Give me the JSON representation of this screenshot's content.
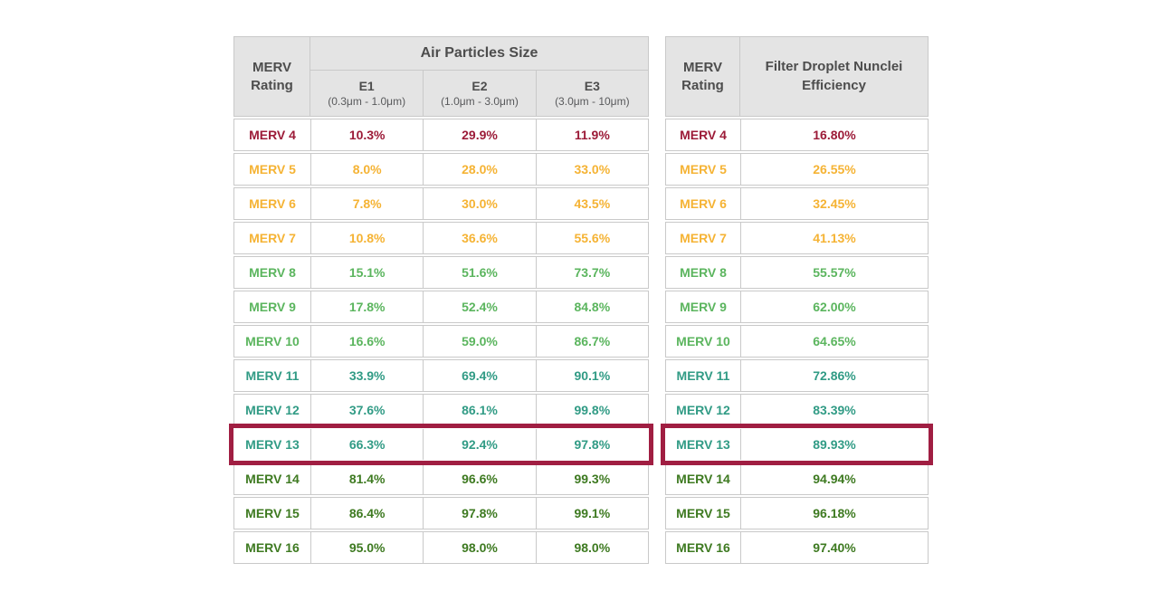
{
  "colors": {
    "header_bg": "#e4e4e4",
    "header_text": "#4d4d4d",
    "table_border": "#c9c9c9",
    "highlight_border": "#a01e42",
    "merv_4": "#9c1b38",
    "merv_5_7": "#f5b334",
    "merv_8_10": "#5bb55e",
    "merv_11_13": "#319b85",
    "merv_14_16": "#3e7a21"
  },
  "left_table": {
    "header": {
      "merv_rating": "MERV Rating",
      "group": "Air Particles Size",
      "columns": [
        {
          "label": "E1",
          "range": "(0.3μm - 1.0μm)"
        },
        {
          "label": "E2",
          "range": "(1.0μm - 3.0μm)"
        },
        {
          "label": "E3",
          "range": "(3.0μm - 10μm)"
        }
      ]
    },
    "rows": [
      {
        "label": "MERV 4",
        "e1": "10.3%",
        "e2": "29.9%",
        "e3": "11.9%",
        "color": "#9c1b38",
        "highlight": false
      },
      {
        "label": "MERV 5",
        "e1": "8.0%",
        "e2": "28.0%",
        "e3": "33.0%",
        "color": "#f5b334",
        "highlight": false
      },
      {
        "label": "MERV 6",
        "e1": "7.8%",
        "e2": "30.0%",
        "e3": "43.5%",
        "color": "#f5b334",
        "highlight": false
      },
      {
        "label": "MERV 7",
        "e1": "10.8%",
        "e2": "36.6%",
        "e3": "55.6%",
        "color": "#f5b334",
        "highlight": false
      },
      {
        "label": "MERV 8",
        "e1": "15.1%",
        "e2": "51.6%",
        "e3": "73.7%",
        "color": "#5bb55e",
        "highlight": false
      },
      {
        "label": "MERV 9",
        "e1": "17.8%",
        "e2": "52.4%",
        "e3": "84.8%",
        "color": "#5bb55e",
        "highlight": false
      },
      {
        "label": "MERV 10",
        "e1": "16.6%",
        "e2": "59.0%",
        "e3": "86.7%",
        "color": "#5bb55e",
        "highlight": false
      },
      {
        "label": "MERV 11",
        "e1": "33.9%",
        "e2": "69.4%",
        "e3": "90.1%",
        "color": "#319b85",
        "highlight": false
      },
      {
        "label": "MERV 12",
        "e1": "37.6%",
        "e2": "86.1%",
        "e3": "99.8%",
        "color": "#319b85",
        "highlight": false
      },
      {
        "label": "MERV 13",
        "e1": "66.3%",
        "e2": "92.4%",
        "e3": "97.8%",
        "color": "#319b85",
        "highlight": true
      },
      {
        "label": "MERV 14",
        "e1": "81.4%",
        "e2": "96.6%",
        "e3": "99.3%",
        "color": "#3e7a21",
        "highlight": false
      },
      {
        "label": "MERV 15",
        "e1": "86.4%",
        "e2": "97.8%",
        "e3": "99.1%",
        "color": "#3e7a21",
        "highlight": false
      },
      {
        "label": "MERV 16",
        "e1": "95.0%",
        "e2": "98.0%",
        "e3": "98.0%",
        "color": "#3e7a21",
        "highlight": false
      }
    ]
  },
  "right_table": {
    "header": {
      "merv_rating": "MERV Rating",
      "title": "Filter Droplet Nunclei Efficiency"
    },
    "rows": [
      {
        "label": "MERV 4",
        "value": "16.80%",
        "color": "#9c1b38",
        "highlight": false
      },
      {
        "label": "MERV 5",
        "value": "26.55%",
        "color": "#f5b334",
        "highlight": false
      },
      {
        "label": "MERV 6",
        "value": "32.45%",
        "color": "#f5b334",
        "highlight": false
      },
      {
        "label": "MERV 7",
        "value": "41.13%",
        "color": "#f5b334",
        "highlight": false
      },
      {
        "label": "MERV 8",
        "value": "55.57%",
        "color": "#5bb55e",
        "highlight": false
      },
      {
        "label": "MERV 9",
        "value": "62.00%",
        "color": "#5bb55e",
        "highlight": false
      },
      {
        "label": "MERV 10",
        "value": "64.65%",
        "color": "#5bb55e",
        "highlight": false
      },
      {
        "label": "MERV 11",
        "value": "72.86%",
        "color": "#319b85",
        "highlight": false
      },
      {
        "label": "MERV 12",
        "value": "83.39%",
        "color": "#319b85",
        "highlight": false
      },
      {
        "label": "MERV 13",
        "value": "89.93%",
        "color": "#319b85",
        "highlight": true
      },
      {
        "label": "MERV 14",
        "value": "94.94%",
        "color": "#3e7a21",
        "highlight": false
      },
      {
        "label": "MERV 15",
        "value": "96.18%",
        "color": "#3e7a21",
        "highlight": false
      },
      {
        "label": "MERV 16",
        "value": "97.40%",
        "color": "#3e7a21",
        "highlight": false
      }
    ]
  },
  "chart_data": [
    {
      "type": "table",
      "title": "Air Particles Size",
      "columns": [
        "MERV Rating",
        "E1 (0.3μm - 1.0μm)",
        "E2 (1.0μm - 3.0μm)",
        "E3 (3.0μm - 10μm)"
      ],
      "units": "%",
      "rows": [
        [
          "MERV 4",
          10.3,
          29.9,
          11.9
        ],
        [
          "MERV 5",
          8.0,
          28.0,
          33.0
        ],
        [
          "MERV 6",
          7.8,
          30.0,
          43.5
        ],
        [
          "MERV 7",
          10.8,
          36.6,
          55.6
        ],
        [
          "MERV 8",
          15.1,
          51.6,
          73.7
        ],
        [
          "MERV 9",
          17.8,
          52.4,
          84.8
        ],
        [
          "MERV 10",
          16.6,
          59.0,
          86.7
        ],
        [
          "MERV 11",
          33.9,
          69.4,
          90.1
        ],
        [
          "MERV 12",
          37.6,
          86.1,
          99.8
        ],
        [
          "MERV 13",
          66.3,
          92.4,
          97.8
        ],
        [
          "MERV 14",
          81.4,
          96.6,
          99.3
        ],
        [
          "MERV 15",
          86.4,
          97.8,
          99.1
        ],
        [
          "MERV 16",
          95.0,
          98.0,
          98.0
        ]
      ],
      "highlighted_row": "MERV 13"
    },
    {
      "type": "table",
      "title": "Filter Droplet Nunclei Efficiency",
      "columns": [
        "MERV Rating",
        "Filter Droplet Nunclei Efficiency"
      ],
      "units": "%",
      "rows": [
        [
          "MERV 4",
          16.8
        ],
        [
          "MERV 5",
          26.55
        ],
        [
          "MERV 6",
          32.45
        ],
        [
          "MERV 7",
          41.13
        ],
        [
          "MERV 8",
          55.57
        ],
        [
          "MERV 9",
          62.0
        ],
        [
          "MERV 10",
          64.65
        ],
        [
          "MERV 11",
          72.86
        ],
        [
          "MERV 12",
          83.39
        ],
        [
          "MERV 13",
          89.93
        ],
        [
          "MERV 14",
          94.94
        ],
        [
          "MERV 15",
          96.18
        ],
        [
          "MERV 16",
          97.4
        ]
      ],
      "highlighted_row": "MERV 13"
    }
  ]
}
